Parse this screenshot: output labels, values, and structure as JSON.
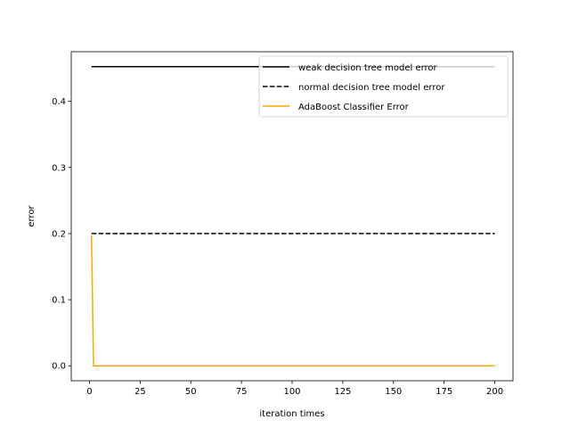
{
  "chart_data": {
    "type": "line",
    "title": "",
    "xlabel": "iteration times",
    "ylabel": "error",
    "xlim": [
      -9,
      209
    ],
    "ylim": [
      -0.0226,
      0.475
    ],
    "xticks": [
      0,
      25,
      50,
      75,
      100,
      125,
      150,
      175,
      200
    ],
    "yticks": [
      0.0,
      0.1,
      0.2,
      0.3,
      0.4
    ],
    "ytick_labels": [
      "0.0",
      "0.1",
      "0.2",
      "0.3",
      "0.4"
    ],
    "grid": false,
    "legend_position": "top-right",
    "series": [
      {
        "name": "weak decision tree model error",
        "color": "#000000",
        "style": "solid",
        "x": [
          1,
          200
        ],
        "y": [
          0.4525,
          0.4525
        ]
      },
      {
        "name": "normal decision tree model error",
        "color": "#000000",
        "style": "dashed",
        "x": [
          1,
          200
        ],
        "y": [
          0.2,
          0.2
        ]
      },
      {
        "name": "AdaBoost Classifier Error",
        "color": "#ffa500",
        "style": "solid",
        "x": [
          1,
          2,
          200
        ],
        "y": [
          0.197,
          0.0,
          0.0
        ]
      }
    ]
  }
}
